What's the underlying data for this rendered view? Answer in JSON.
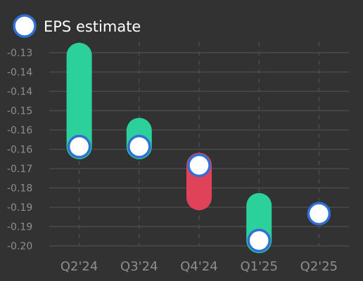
{
  "chart_data": {
    "type": "bar",
    "categories": [
      "Q2'24",
      "Q3'24",
      "Q4'24",
      "Q1'25",
      "Q2'25"
    ],
    "series": [
      {
        "name": "EPS estimate",
        "values": [
          -0.164,
          -0.164,
          -0.171,
          -0.199,
          -0.189
        ]
      },
      {
        "values": [
          -0.13,
          -0.158,
          -0.183,
          -0.186,
          null
        ]
      }
    ],
    "y_tick_labels": [
      "-0.13",
      "-0.14",
      "-0.14",
      "-0.15",
      "-0.16",
      "-0.16",
      "-0.17",
      "-0.18",
      "-0.19",
      "-0.19",
      "-0.20"
    ],
    "ylim": [
      -0.201,
      -0.129
    ],
    "legend": {
      "label": "EPS estimate",
      "position": "top-left"
    },
    "grid": true,
    "colors": {
      "background": "#323232",
      "beat": "#2bd09b",
      "miss": "#e0425a",
      "marker_fill": "#ffffff",
      "marker_stroke": "#2f6fd6"
    }
  }
}
